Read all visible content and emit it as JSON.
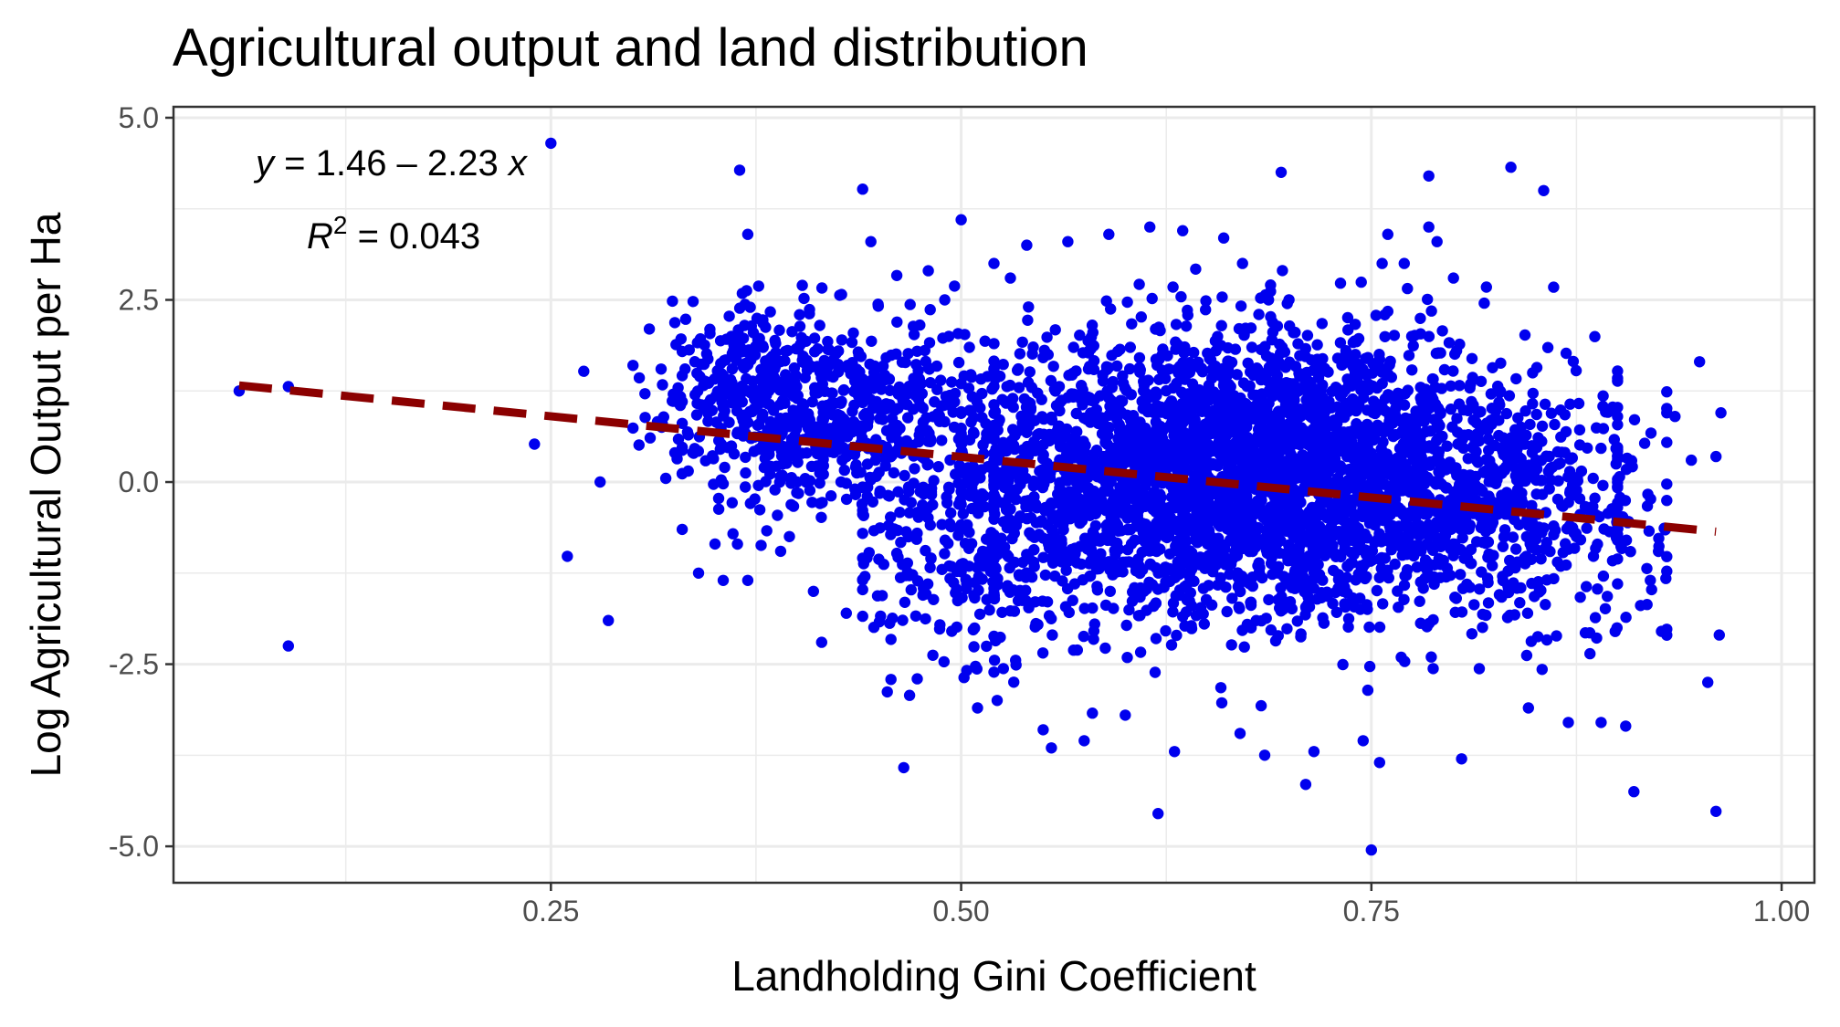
{
  "chart_data": {
    "type": "scatter",
    "title": "Agricultural output and land distribution",
    "xlabel": "Landholding Gini Coefficient",
    "ylabel": "Log Agricultural Output per Ha",
    "xlim": [
      0.02,
      1.02
    ],
    "ylim": [
      -5.5,
      5.15
    ],
    "x_ticks": [
      0.25,
      0.5,
      0.75,
      1.0
    ],
    "x_tick_labels": [
      "0.25",
      "0.50",
      "0.75",
      "1.00"
    ],
    "y_ticks": [
      5.0,
      2.5,
      0.0,
      -2.5,
      -5.0
    ],
    "y_tick_labels": [
      "5.0",
      "2.5",
      "0.0",
      "-2.5",
      "-5.0"
    ],
    "grid": true,
    "point_color": "#0000ee",
    "fit_line_color": "#8b0000",
    "fit": {
      "intercept": 1.46,
      "slope": -2.23,
      "x_range": [
        0.06,
        0.96
      ]
    },
    "annotation": {
      "equation": {
        "y_sym": "y",
        "rest": " = 1.46 – 2.23 ",
        "x_sym": "x"
      },
      "r2": {
        "r_sym": "R",
        "exponent": "2",
        "rest": " = 0.043"
      }
    },
    "points": [
      [
        0.06,
        1.25
      ],
      [
        0.09,
        1.31
      ],
      [
        0.09,
        -2.25
      ],
      [
        0.24,
        0.52
      ],
      [
        0.25,
        4.65
      ],
      [
        0.27,
        1.52
      ],
      [
        0.26,
        -1.02
      ],
      [
        0.28,
        0.0
      ],
      [
        0.285,
        -1.9
      ],
      [
        0.3,
        1.6
      ],
      [
        0.31,
        2.1
      ],
      [
        0.32,
        0.05
      ],
      [
        0.33,
        -0.65
      ],
      [
        0.34,
        -1.25
      ],
      [
        0.35,
        -0.85
      ],
      [
        0.355,
        -1.35
      ],
      [
        0.36,
        2.0
      ],
      [
        0.365,
        4.28
      ],
      [
        0.37,
        3.4
      ],
      [
        0.37,
        -1.35
      ],
      [
        0.38,
        0.2
      ],
      [
        0.39,
        -0.95
      ],
      [
        0.4,
        0.0
      ],
      [
        0.41,
        -1.5
      ],
      [
        0.415,
        -2.2
      ],
      [
        0.43,
        -1.8
      ],
      [
        0.44,
        4.02
      ],
      [
        0.445,
        3.3
      ],
      [
        0.455,
        -2.88
      ],
      [
        0.465,
        -3.92
      ],
      [
        0.48,
        2.9
      ],
      [
        0.49,
        2.5
      ],
      [
        0.5,
        3.6
      ],
      [
        0.51,
        -3.1
      ],
      [
        0.52,
        3.0
      ],
      [
        0.53,
        2.8
      ],
      [
        0.54,
        3.25
      ],
      [
        0.55,
        -3.4
      ],
      [
        0.555,
        -3.65
      ],
      [
        0.565,
        3.3
      ],
      [
        0.575,
        -3.55
      ],
      [
        0.59,
        3.4
      ],
      [
        0.6,
        -3.2
      ],
      [
        0.615,
        3.5
      ],
      [
        0.62,
        -4.55
      ],
      [
        0.63,
        -3.7
      ],
      [
        0.635,
        3.45
      ],
      [
        0.66,
        3.35
      ],
      [
        0.67,
        -3.45
      ],
      [
        0.685,
        -3.75
      ],
      [
        0.695,
        4.25
      ],
      [
        0.71,
        -4.15
      ],
      [
        0.715,
        -3.7
      ],
      [
        0.745,
        -3.55
      ],
      [
        0.75,
        -5.05
      ],
      [
        0.755,
        -3.85
      ],
      [
        0.76,
        3.4
      ],
      [
        0.77,
        3.0
      ],
      [
        0.785,
        4.2
      ],
      [
        0.785,
        3.5
      ],
      [
        0.79,
        3.3
      ],
      [
        0.8,
        2.8
      ],
      [
        0.805,
        -3.8
      ],
      [
        0.835,
        4.32
      ],
      [
        0.855,
        4.0
      ],
      [
        0.87,
        -3.3
      ],
      [
        0.89,
        -3.3
      ],
      [
        0.905,
        -3.35
      ],
      [
        0.91,
        -4.25
      ],
      [
        0.95,
        1.65
      ],
      [
        0.955,
        -2.75
      ],
      [
        0.96,
        -4.52
      ],
      [
        0.96,
        0.35
      ],
      [
        0.963,
        0.95
      ],
      [
        0.962,
        -2.1
      ],
      [
        0.945,
        0.3
      ],
      [
        0.93,
        0.95
      ],
      [
        0.92,
        -1.35
      ],
      [
        0.935,
        0.9
      ]
    ],
    "cloud_seed": 20240611
  }
}
